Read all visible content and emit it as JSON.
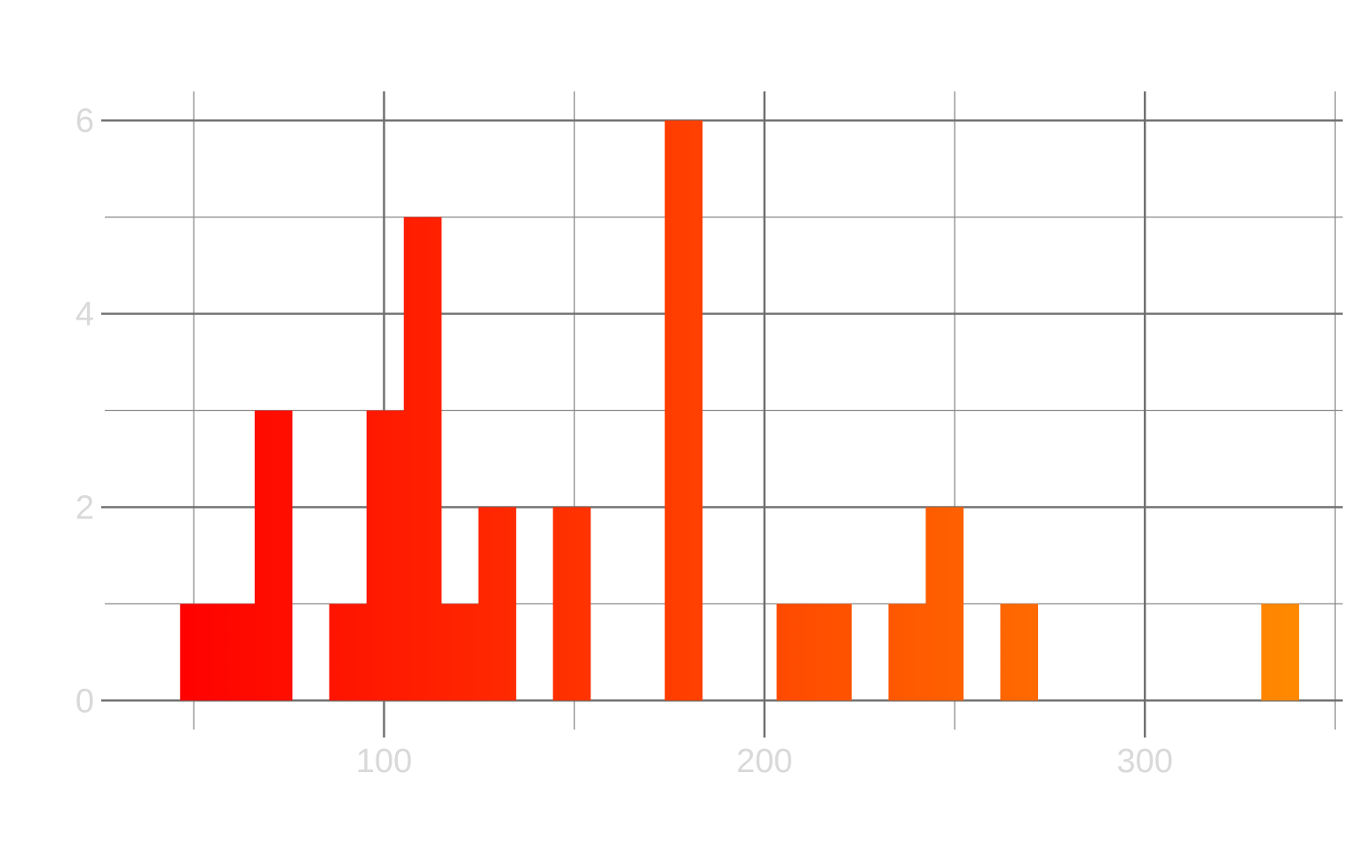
{
  "chart_data": {
    "type": "bar",
    "title": "",
    "xlabel": "",
    "ylabel": "",
    "bin_width": 9.8,
    "bins": [
      {
        "start": 46.4,
        "end": 56.2,
        "count": 1
      },
      {
        "start": 56.2,
        "end": 66.0,
        "count": 1
      },
      {
        "start": 66.0,
        "end": 75.8,
        "count": 3
      },
      {
        "start": 85.6,
        "end": 95.4,
        "count": 1
      },
      {
        "start": 95.4,
        "end": 105.2,
        "count": 3
      },
      {
        "start": 105.2,
        "end": 115.0,
        "count": 5
      },
      {
        "start": 115.0,
        "end": 124.8,
        "count": 1
      },
      {
        "start": 124.8,
        "end": 134.6,
        "count": 2
      },
      {
        "start": 144.4,
        "end": 154.2,
        "count": 2
      },
      {
        "start": 173.8,
        "end": 183.6,
        "count": 6
      },
      {
        "start": 203.2,
        "end": 213.0,
        "count": 1
      },
      {
        "start": 213.0,
        "end": 222.8,
        "count": 1
      },
      {
        "start": 232.6,
        "end": 242.4,
        "count": 1
      },
      {
        "start": 242.4,
        "end": 252.2,
        "count": 2
      },
      {
        "start": 262.0,
        "end": 271.8,
        "count": 1
      },
      {
        "start": 330.6,
        "end": 340.4,
        "count": 1
      }
    ],
    "xlim": [
      26.6,
      352.0
    ],
    "ylim": [
      -0.3,
      6.3
    ],
    "x_ticks": [
      100,
      200,
      300
    ],
    "x_tick_labels": [
      "100",
      "200",
      "300"
    ],
    "x_minor_grid": [
      50,
      150,
      250,
      350
    ],
    "y_ticks": [
      0,
      2,
      4,
      6
    ],
    "y_tick_labels": [
      "0",
      "2",
      "4",
      "6"
    ],
    "y_minor_grid": [
      1,
      3,
      5
    ],
    "grid": true,
    "legend": "none",
    "colors": {
      "gradient_start": "#ff0000",
      "gradient_end": "#ff8800",
      "grid_major": "#6e6e6e",
      "grid_minor": "#8c8c8c",
      "tick_label": "#d9d9d9",
      "background": "#ffffff"
    }
  }
}
